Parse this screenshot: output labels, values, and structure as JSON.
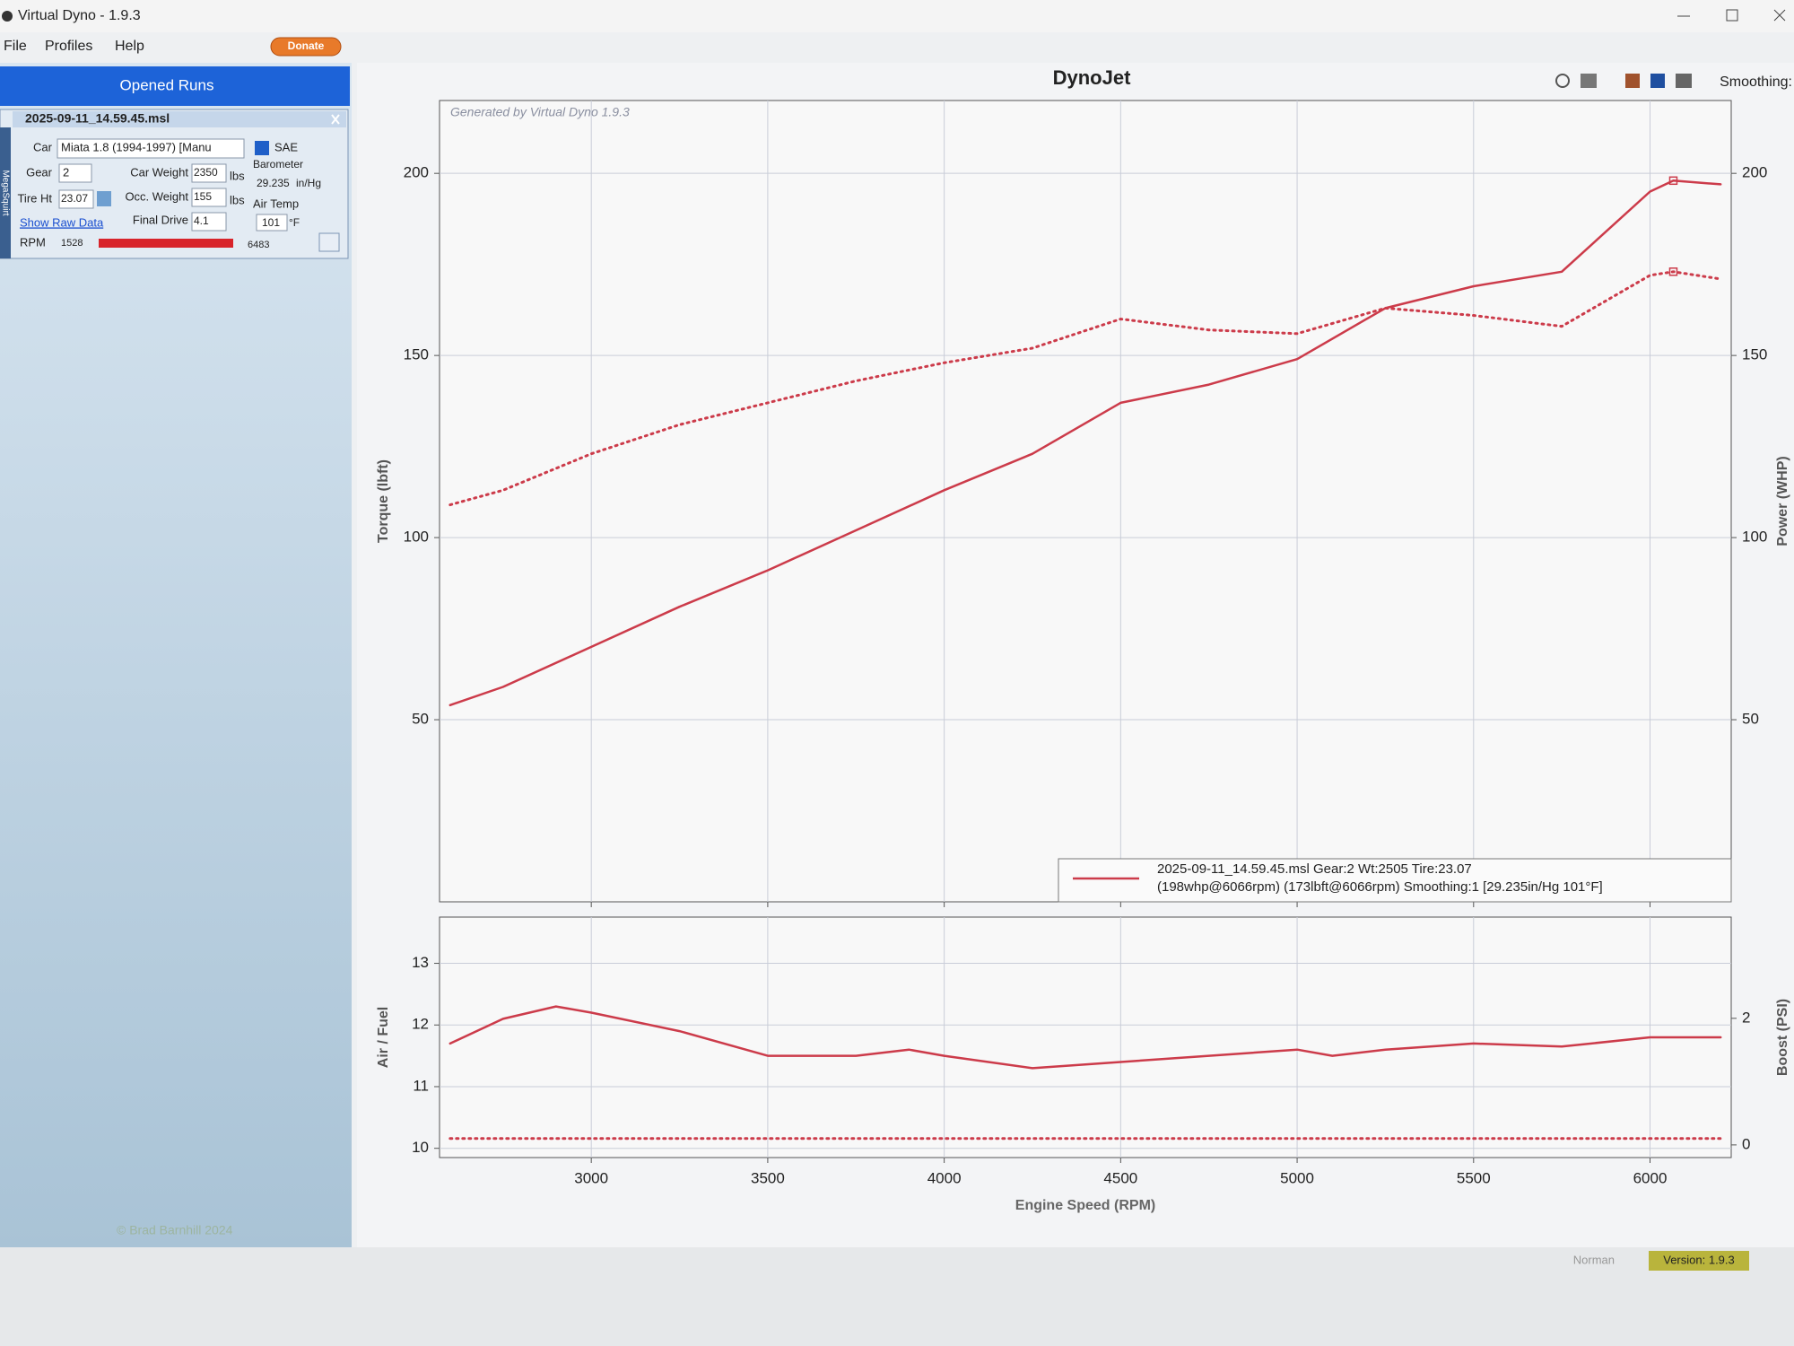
{
  "window": {
    "title": "Virtual Dyno - 1.9.3",
    "menu": [
      "File",
      "Profiles",
      "Help"
    ],
    "donate": "Donate"
  },
  "sidebar": {
    "header": "Opened Runs",
    "run": "2025-09-11_14.59.45.msl",
    "tab": "MegaSquirt",
    "car": {
      "label": "Car",
      "value": "Miata 1.8 (1994-1997) [Manu"
    },
    "sae": "SAE",
    "gear": {
      "label": "Gear",
      "value": "2"
    },
    "car_weight": {
      "label": "Car Weight",
      "value": "2350",
      "unit": "lbs"
    },
    "barometer": {
      "label": "Barometer",
      "value": "29.235",
      "unit": "in/Hg"
    },
    "tire_height": {
      "label": "Tire Ht",
      "value": "23.07"
    },
    "occ_weight": {
      "label": "Occ. Weight",
      "value": "155",
      "unit": "lbs"
    },
    "air_temp": {
      "label": "Air Temp",
      "value": "101",
      "unit": "°F"
    },
    "raw_data": "Show Raw Data",
    "final_drive": {
      "label": "Final Drive",
      "value": "4.1"
    },
    "rpm": {
      "label": "RPM",
      "min": "1528",
      "max": "6483"
    }
  },
  "toolbar": {
    "smoothing": "Smoothing:"
  },
  "chart_data": [
    {
      "type": "line",
      "title": "DynoJet",
      "watermark": "Generated by Virtual Dyno 1.9.3",
      "x": [
        2600,
        2750,
        3000,
        3250,
        3500,
        3750,
        4000,
        4250,
        4500,
        4750,
        5000,
        5250,
        5500,
        5750,
        6000,
        6066,
        6200
      ],
      "xlim": [
        2570,
        6230
      ],
      "ylim": [
        0,
        220
      ],
      "yticks": [
        50,
        100,
        150,
        200
      ],
      "y2lim": [
        0,
        220
      ],
      "y2ticks": [
        50,
        100,
        150,
        200
      ],
      "y_label": "Torque (lbft)",
      "y2_label": "Power (WHP)",
      "grid": true,
      "markers": "peak",
      "series": [
        {
          "color": "#cc3b4a",
          "axis": "y2",
          "values": [
            54,
            59,
            70,
            81,
            91,
            102,
            113,
            123,
            137,
            142,
            149,
            163,
            169,
            173,
            195,
            198,
            197
          ]
        },
        {
          "color": "#cc3b4a",
          "dash": "dotted",
          "values": [
            109,
            113,
            123,
            131,
            137,
            143,
            148,
            152,
            160,
            157,
            156,
            163,
            161,
            158,
            172,
            173,
            171
          ]
        }
      ],
      "legend": {
        "position": "bottom-right",
        "lines": [
          "2025-09-11_14.59.45.msl  Gear:2  Wt:2505  Tire:23.07",
          "(198whp@6066rpm)  (173lbft@6066rpm)  Smoothing:1  [29.235in/Hg  101°F]"
        ]
      }
    },
    {
      "type": "line",
      "x": [
        2600,
        2750,
        2900,
        3000,
        3250,
        3500,
        3750,
        3900,
        4000,
        4250,
        4500,
        4750,
        5000,
        5100,
        5250,
        5500,
        5750,
        6000,
        6200
      ],
      "xlim": [
        2570,
        6230
      ],
      "xticks": [
        3000,
        3500,
        4000,
        4500,
        5000,
        5500,
        6000
      ],
      "ylim": [
        9.85,
        13.75
      ],
      "yticks": [
        10,
        11,
        12,
        13
      ],
      "y2lim": [
        -0.2,
        3.6
      ],
      "y2ticks": [
        0,
        2
      ],
      "y_label": "Air / Fuel",
      "y2_label": "Boost (PSI)",
      "x_label": "Engine Speed (RPM)",
      "grid": true,
      "series": [
        {
          "color": "#cc3b4a",
          "values": [
            11.7,
            12.1,
            12.3,
            12.2,
            11.9,
            11.5,
            11.5,
            11.6,
            11.5,
            11.3,
            11.4,
            11.5,
            11.6,
            11.5,
            11.6,
            11.7,
            11.65,
            11.8,
            11.8
          ]
        },
        {
          "color": "#cc3b4a",
          "dash": "dotted",
          "axis": "y2",
          "values": [
            0.1,
            0.1,
            0.1,
            0.1,
            0.1,
            0.1,
            0.1,
            0.1,
            0.1,
            0.1,
            0.1,
            0.1,
            0.1,
            0.1,
            0.1,
            0.1,
            0.1,
            0.1,
            0.1
          ]
        }
      ]
    }
  ],
  "footer": {
    "copyright": "© Brad Barnhill 2024",
    "user": "Norman",
    "version": "Version: 1.9.3"
  }
}
